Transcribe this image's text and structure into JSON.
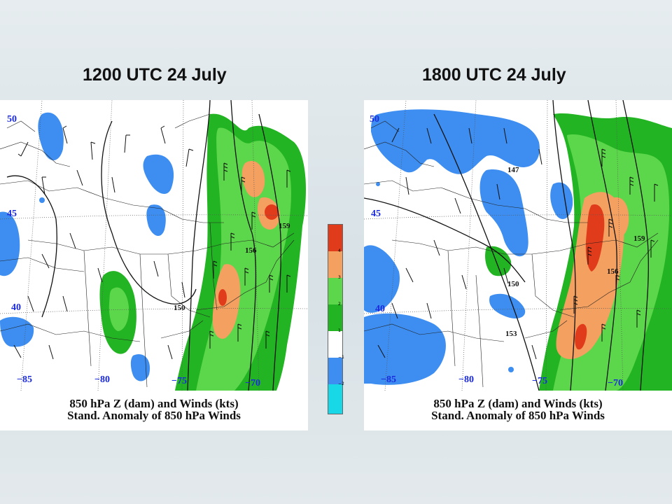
{
  "panels": [
    {
      "title": "1200 UTC 24 July",
      "caption_line1": "850 hPa Z (dam) and Winds (kts)",
      "caption_line2": "Stand. Anomaly of 850 hPa Winds",
      "lat_labels": [
        "50",
        "45",
        "40"
      ],
      "lon_labels": [
        "−85",
        "−80",
        "−75",
        "−70"
      ],
      "height_labels": [
        "159",
        "156",
        "150"
      ]
    },
    {
      "title": "1800 UTC 24 July",
      "caption_line1": "850 hPa Z (dam) and Winds (kts)",
      "caption_line2": "Stand. Anomaly of 850 hPa Winds",
      "lat_labels": [
        "50",
        "45",
        "40"
      ],
      "lon_labels": [
        "−85",
        "−80",
        "−75",
        "−70"
      ],
      "height_labels": [
        "147",
        "159",
        "156",
        "150",
        "153"
      ]
    }
  ],
  "color_scale": {
    "labels": [
      "4",
      "3",
      "2",
      "1",
      "−1",
      "−2"
    ],
    "colors": {
      "plus4": "#e03c1c",
      "plus3": "#f4a060",
      "plus2": "#5cd64a",
      "plus1": "#22b422",
      "neutral": "#ffffff",
      "minus1": "#3d8ef0",
      "minus2": "#18d8e8"
    }
  }
}
